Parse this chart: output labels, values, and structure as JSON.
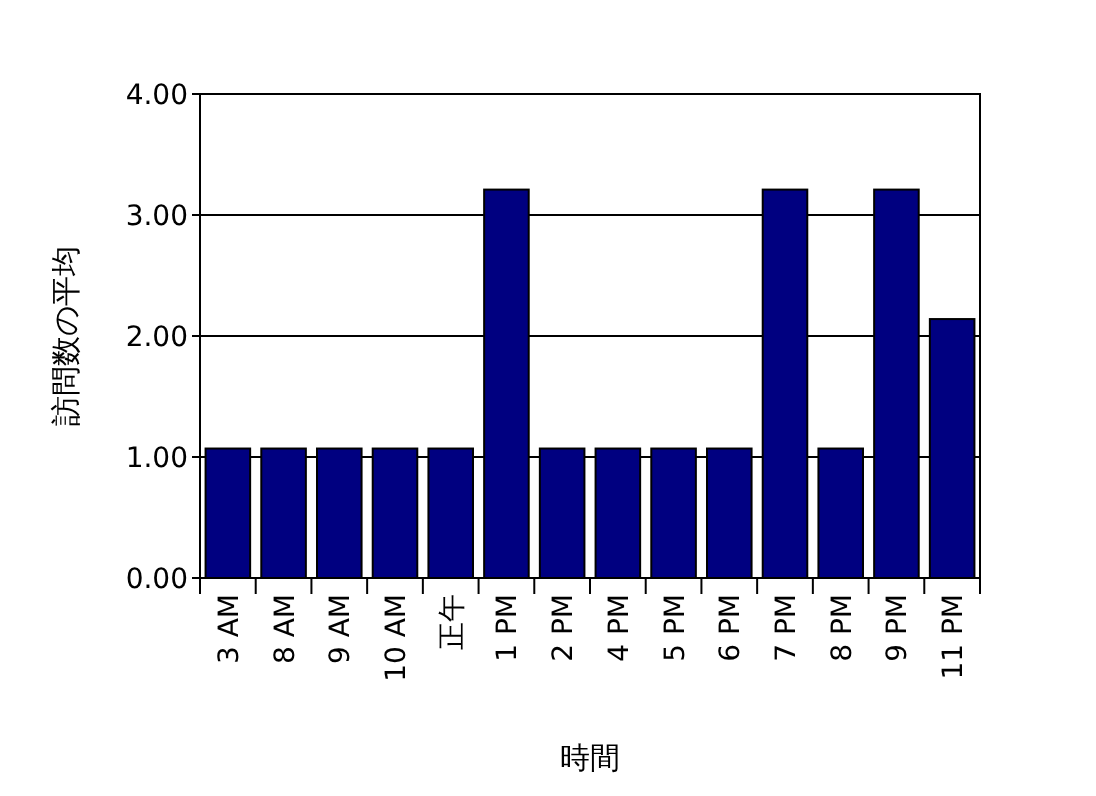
{
  "chart_data": {
    "type": "bar",
    "xlabel": "時間",
    "ylabel": "訪問数の平均",
    "categories": [
      "3 AM",
      "8 AM",
      "9 AM",
      "10 AM",
      "正午",
      "1 PM",
      "2 PM",
      "4 PM",
      "5 PM",
      "6 PM",
      "7 PM",
      "8 PM",
      "9 PM",
      "11 PM"
    ],
    "values": [
      1.07,
      1.07,
      1.07,
      1.07,
      1.07,
      3.21,
      1.07,
      1.07,
      1.07,
      1.07,
      3.21,
      1.07,
      3.21,
      2.14
    ],
    "color": "#000080",
    "ylim": [
      0,
      4
    ],
    "yticks": [
      {
        "value": 0,
        "label": "0.00"
      },
      {
        "value": 1,
        "label": "1.00"
      },
      {
        "value": 2,
        "label": "2.00"
      },
      {
        "value": 3,
        "label": "3.00"
      },
      {
        "value": 4,
        "label": "4.00"
      }
    ],
    "grid": "y"
  }
}
